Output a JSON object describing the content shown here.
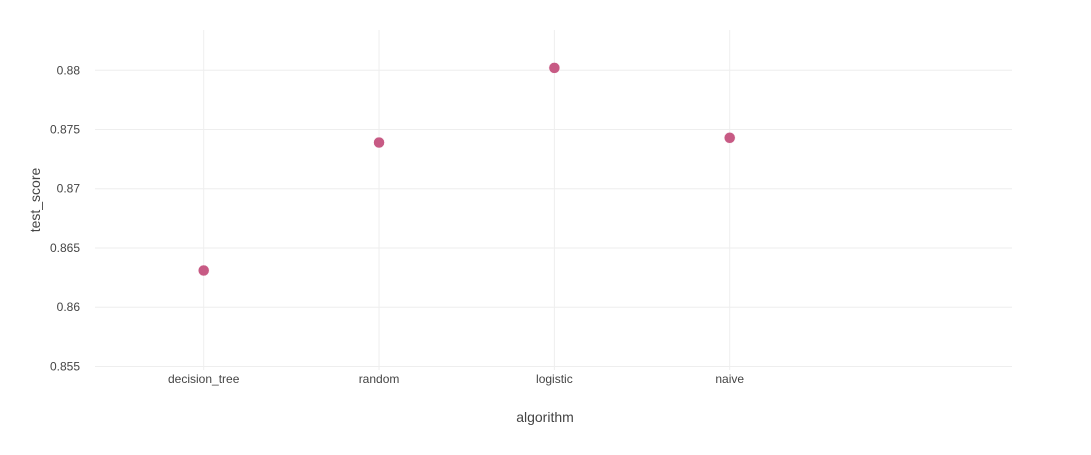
{
  "chart_data": {
    "type": "scatter",
    "xlabel": "algorithm",
    "ylabel": "test_score",
    "categories": [
      "decision_tree",
      "random",
      "logistic",
      "naive"
    ],
    "series": [
      {
        "values": [
          0.8631,
          0.8739,
          0.8802,
          0.8743
        ]
      }
    ],
    "ylim": [
      0.8547,
      0.8834
    ],
    "yticks": [
      0.855,
      0.86,
      0.865,
      0.87,
      0.875,
      0.88
    ],
    "ytick_labels": [
      "0.855",
      "0.86",
      "0.865",
      "0.87",
      "0.875",
      "0.88"
    ],
    "grid": true,
    "marker_color": "#c75a84",
    "gridline_color": "#eeeeee"
  }
}
